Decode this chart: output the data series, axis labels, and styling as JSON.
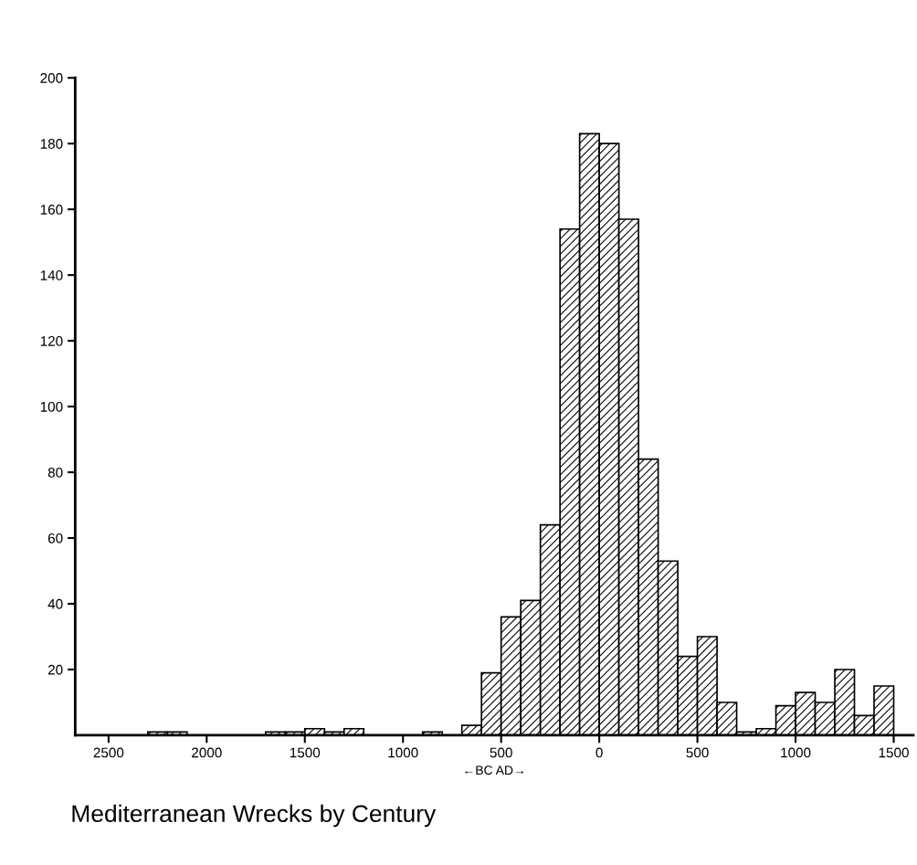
{
  "chart_data": {
    "type": "histogram",
    "title": "Mediterranean Wrecks by Century",
    "xlabel": "←BC AD→",
    "bins": [
      -2300,
      -2200,
      -2100,
      -2000,
      -1900,
      -1800,
      -1700,
      -1600,
      -1500,
      -1400,
      -1300,
      -1200,
      -1100,
      -1000,
      -900,
      -800,
      -700,
      -600,
      -500,
      -400,
      -300,
      -200,
      -100,
      0,
      100,
      200,
      300,
      400,
      500,
      600,
      700,
      800,
      900,
      1000,
      1100,
      1200,
      1300,
      1400,
      1500
    ],
    "values": [
      1,
      1,
      0,
      0,
      0,
      0,
      1,
      1,
      2,
      1,
      2,
      0,
      0,
      0,
      1,
      0,
      3,
      19,
      36,
      41,
      64,
      154,
      183,
      180,
      157,
      84,
      53,
      24,
      30,
      10,
      1,
      2,
      9,
      13,
      10,
      20,
      6,
      15
    ],
    "color": "#000000",
    "xlim": [
      -2670,
      1600
    ],
    "xticks": [
      {
        "value": -2500,
        "label": "2500"
      },
      {
        "value": -2000,
        "label": "2000"
      },
      {
        "value": -1500,
        "label": "1500"
      },
      {
        "value": -1000,
        "label": "1000"
      },
      {
        "value": -500,
        "label": "500"
      },
      0,
      500,
      1000,
      1500
    ],
    "ylim": [
      0,
      200
    ],
    "yticks": [
      20,
      40,
      60,
      80,
      100,
      120,
      140,
      160,
      180,
      200
    ],
    "grid": false
  }
}
